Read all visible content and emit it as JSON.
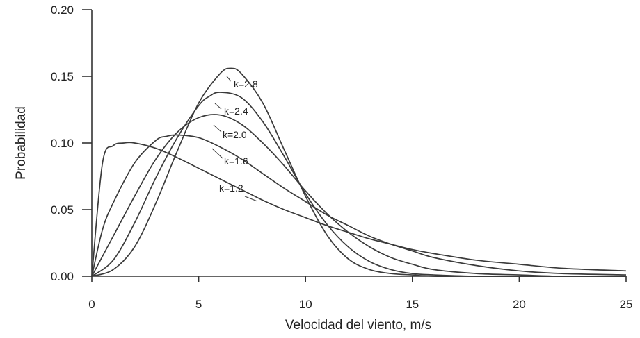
{
  "chart_data": {
    "type": "line",
    "title": "",
    "xlabel": "Velocidad del viento, m/s",
    "ylabel": "Probabilidad",
    "xlim": [
      0,
      25
    ],
    "ylim": [
      0,
      0.2
    ],
    "x_ticks": [
      "0",
      "5",
      "10",
      "15",
      "20",
      "25"
    ],
    "y_ticks": [
      "0.00",
      "0.05",
      "0.10",
      "0.15",
      "0.20"
    ],
    "grid": false,
    "legend": "none",
    "series": [
      {
        "name": "k=1.2",
        "x": [
          0,
          0.5,
          1,
          1.5,
          2,
          3,
          4,
          5,
          6,
          7,
          8,
          9,
          10,
          11,
          12,
          13,
          14,
          15,
          16,
          18,
          20,
          22,
          25
        ],
        "y": [
          0,
          0.085,
          0.098,
          0.1,
          0.1,
          0.096,
          0.089,
          0.081,
          0.073,
          0.065,
          0.057,
          0.05,
          0.044,
          0.038,
          0.033,
          0.028,
          0.024,
          0.02,
          0.017,
          0.012,
          0.009,
          0.006,
          0.004
        ]
      },
      {
        "name": "k=1.6",
        "x": [
          0,
          0.5,
          1,
          2,
          3,
          3.5,
          4,
          5,
          6,
          7,
          8,
          9,
          10,
          11,
          12,
          13,
          14,
          15,
          16,
          18,
          20,
          22,
          25
        ],
        "y": [
          0,
          0.035,
          0.055,
          0.085,
          0.102,
          0.105,
          0.106,
          0.104,
          0.097,
          0.088,
          0.077,
          0.066,
          0.056,
          0.046,
          0.038,
          0.03,
          0.024,
          0.019,
          0.014,
          0.008,
          0.004,
          0.002,
          0.001
        ]
      },
      {
        "name": "k=2.0",
        "x": [
          0,
          1,
          2,
          3,
          4,
          5,
          6,
          7,
          8,
          9,
          10,
          11,
          12,
          13,
          14,
          15,
          16,
          18,
          20,
          22,
          25
        ],
        "y": [
          0,
          0.03,
          0.06,
          0.088,
          0.108,
          0.119,
          0.121,
          0.114,
          0.1,
          0.083,
          0.064,
          0.047,
          0.033,
          0.022,
          0.014,
          0.009,
          0.005,
          0.002,
          0.001,
          0,
          0
        ]
      },
      {
        "name": "k=2.4",
        "x": [
          0,
          1,
          2,
          3,
          4,
          5,
          5.5,
          6,
          7,
          8,
          9,
          10,
          11,
          12,
          13,
          14,
          15,
          16,
          18,
          20,
          25
        ],
        "y": [
          0,
          0.012,
          0.04,
          0.074,
          0.104,
          0.128,
          0.135,
          0.138,
          0.134,
          0.116,
          0.09,
          0.062,
          0.039,
          0.022,
          0.011,
          0.005,
          0.002,
          0.001,
          0,
          0,
          0
        ]
      },
      {
        "name": "k=2.8",
        "x": [
          0,
          1,
          2,
          3,
          4,
          5,
          6,
          6.5,
          7,
          8,
          9,
          10,
          11,
          12,
          13,
          14,
          15,
          16,
          18,
          20,
          25
        ],
        "y": [
          0,
          0.005,
          0.022,
          0.055,
          0.094,
          0.13,
          0.152,
          0.156,
          0.152,
          0.13,
          0.095,
          0.06,
          0.031,
          0.013,
          0.005,
          0.002,
          0.001,
          0,
          0,
          0,
          0
        ]
      }
    ],
    "annotations": [
      "k=2.8",
      "k=2.4",
      "k=2.0",
      "k=1.6",
      "k=1.2"
    ]
  }
}
